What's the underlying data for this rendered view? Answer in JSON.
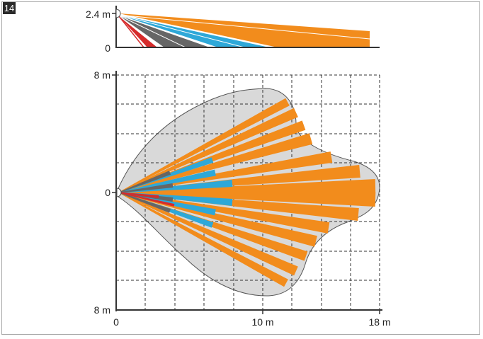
{
  "figure": {
    "number": "14",
    "side_view": {
      "height_label": "2.4 m",
      "zero_label": "0"
    },
    "top_view": {
      "top_label": "8 m",
      "center_label": "0",
      "bottom_label": "8 m",
      "x_zero_label": "0",
      "x_mid_label": "10 m",
      "x_max_label": "18 m"
    }
  },
  "colors": {
    "far_zone": "#f28c1c",
    "mid_zone": "#2ea8d8",
    "near_zone": "#666666",
    "creep_zone": "#d62b2b",
    "coverage": "#d9d9d9",
    "badge": "#2a2a2a"
  }
}
